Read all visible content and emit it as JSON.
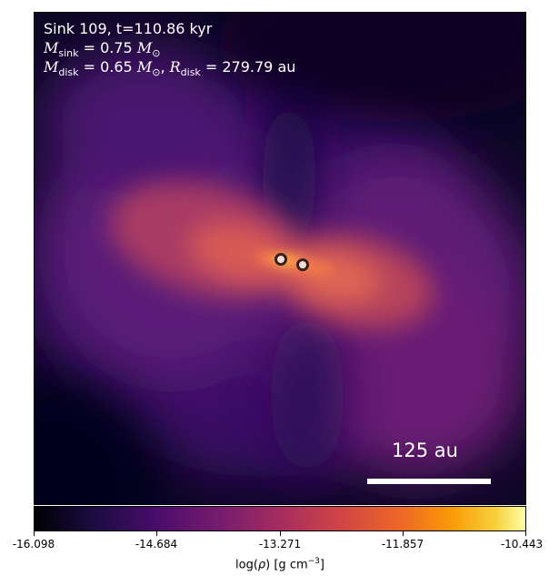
{
  "annotation": {
    "title": "Sink 109, t=110.86 kyr",
    "sink_mass_label": "M",
    "sink_mass_sub": "sink",
    "sink_mass_value": " = 0.75 ",
    "disk_mass_sub": "disk",
    "disk_mass_value": " = 0.65 ",
    "disk_radius_sub": "disk",
    "disk_radius_value": " = 279.79 au",
    "solar_symbol": "⊙"
  },
  "scale_bar": {
    "label": "125 au"
  },
  "sinks": {
    "count": 2
  },
  "colorbar": {
    "colormap": "inferno",
    "ticks": [
      "-16.098",
      "-14.684",
      "-13.271",
      "-11.857",
      "-10.443"
    ],
    "label_prefix": "log(",
    "label_rho": "ρ",
    "label_units": ") [g cm",
    "label_exp": "−3",
    "label_close": "]"
  },
  "colors": {
    "background_dark": "#0b0620",
    "disk_bright": "#f27a4a",
    "text": "#ffffff"
  }
}
